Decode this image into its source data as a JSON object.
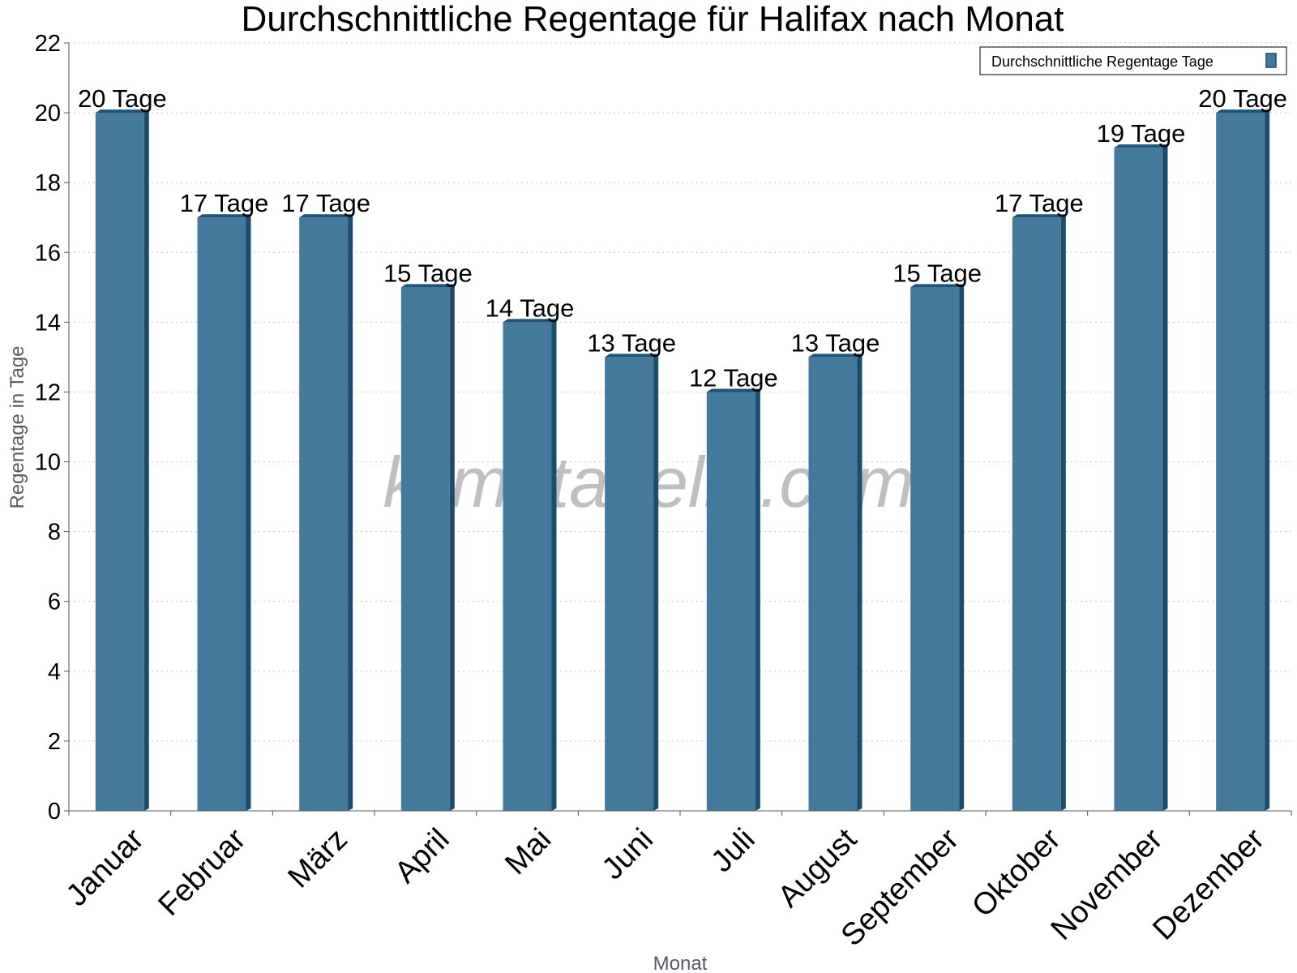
{
  "chart_data": {
    "type": "bar",
    "title": "Durchschnittliche Regentage für Halifax nach Monat",
    "xlabel": "Monat",
    "ylabel": "Regentage in Tage",
    "categories": [
      "Januar",
      "Februar",
      "März",
      "April",
      "Mai",
      "Juni",
      "Juli",
      "August",
      "September",
      "Oktober",
      "November",
      "Dezember"
    ],
    "series": [
      {
        "name": "Durchschnittliche Regentage Tage",
        "values": [
          20,
          17,
          17,
          15,
          14,
          13,
          12,
          13,
          15,
          17,
          19,
          20
        ],
        "color": "#45799c",
        "data_labels": [
          "20 Tage",
          "17 Tage",
          "17 Tage",
          "15 Tage",
          "14 Tage",
          "13 Tage",
          "12 Tage",
          "13 Tage",
          "15 Tage",
          "17 Tage",
          "19 Tage",
          "20 Tage"
        ]
      }
    ],
    "ylim": [
      0,
      22
    ],
    "yticks": [
      0,
      2,
      4,
      6,
      8,
      10,
      12,
      14,
      16,
      18,
      20,
      22
    ],
    "grid": true,
    "legend_position": "top-right",
    "watermark": "klimatabelle.com"
  }
}
